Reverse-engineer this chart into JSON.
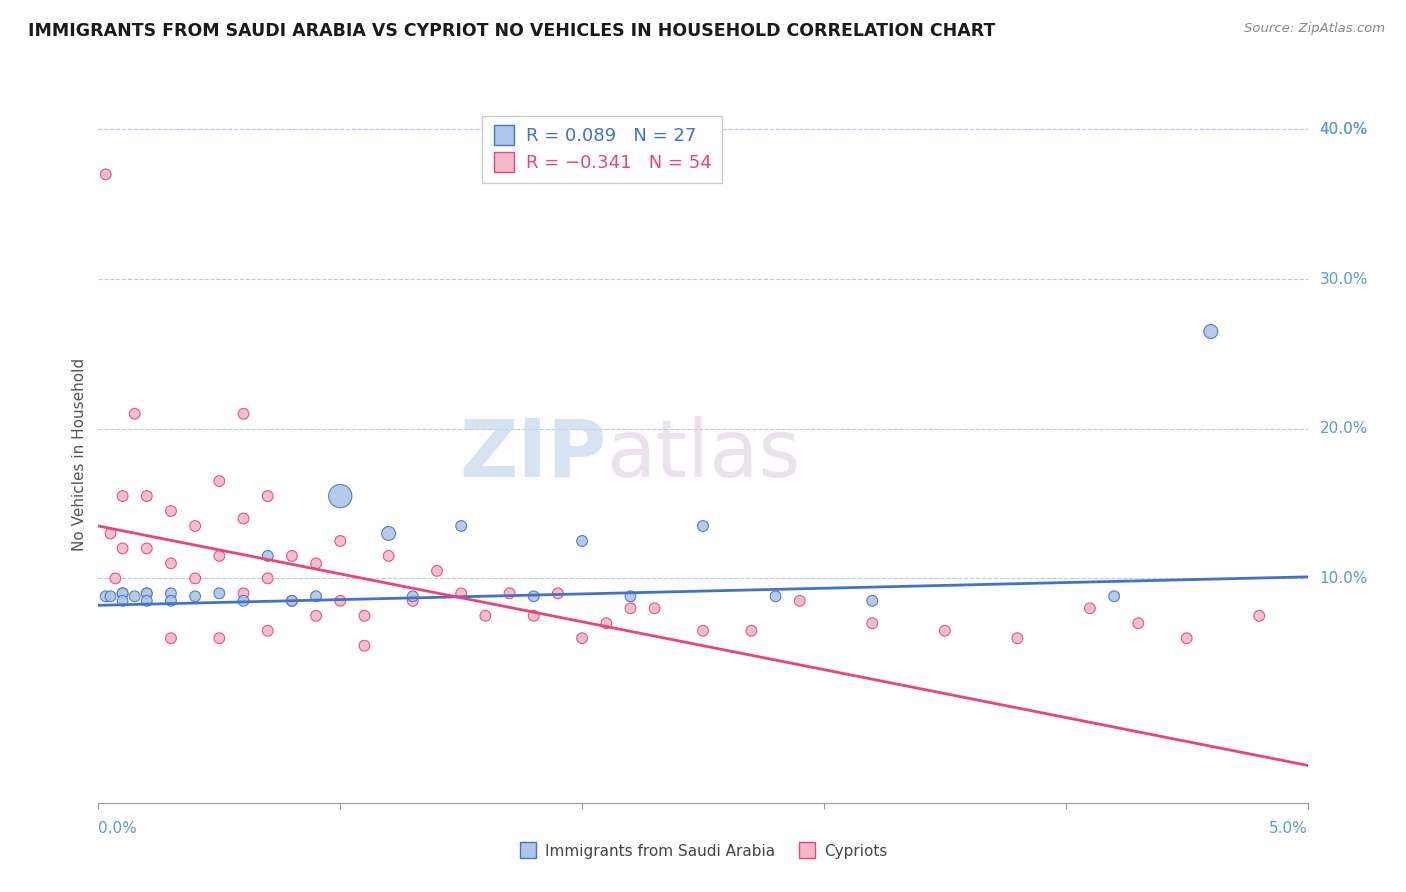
{
  "title": "IMMIGRANTS FROM SAUDI ARABIA VS CYPRIOT NO VEHICLES IN HOUSEHOLD CORRELATION CHART",
  "source_text": "Source: ZipAtlas.com",
  "ylabel": "No Vehicles in Household",
  "ylabel_right_ticks": [
    0.1,
    0.2,
    0.3,
    0.4
  ],
  "ylabel_right_labels": [
    "10.0%",
    "20.0%",
    "30.0%",
    "40.0%"
  ],
  "xmin": 0.0,
  "xmax": 0.05,
  "ymin": -0.05,
  "ymax": 0.415,
  "blue_line_color": "#4472c4",
  "pink_line_color": "#e8457a",
  "blue_color": "#aec6e8",
  "pink_color": "#f4b8c8",
  "legend_label_blue": "Immigrants from Saudi Arabia",
  "legend_label_pink": "Cypriots",
  "watermark_zip": "ZIP",
  "watermark_atlas": "atlas",
  "blue_scatter_x": [
    0.0003,
    0.0005,
    0.001,
    0.001,
    0.0015,
    0.002,
    0.002,
    0.003,
    0.003,
    0.004,
    0.005,
    0.006,
    0.007,
    0.008,
    0.009,
    0.01,
    0.012,
    0.013,
    0.015,
    0.018,
    0.02,
    0.022,
    0.025,
    0.028,
    0.032,
    0.042,
    0.046
  ],
  "blue_scatter_y": [
    0.088,
    0.088,
    0.09,
    0.085,
    0.088,
    0.09,
    0.085,
    0.09,
    0.085,
    0.088,
    0.09,
    0.085,
    0.115,
    0.085,
    0.088,
    0.155,
    0.13,
    0.088,
    0.135,
    0.088,
    0.125,
    0.088,
    0.135,
    0.088,
    0.085,
    0.088,
    0.265
  ],
  "blue_scatter_size": [
    60,
    60,
    60,
    60,
    60,
    60,
    60,
    60,
    60,
    60,
    60,
    60,
    60,
    60,
    60,
    280,
    100,
    60,
    60,
    60,
    60,
    60,
    60,
    60,
    60,
    60,
    100
  ],
  "pink_scatter_x": [
    0.0003,
    0.0005,
    0.0007,
    0.001,
    0.001,
    0.001,
    0.0015,
    0.002,
    0.002,
    0.002,
    0.003,
    0.003,
    0.003,
    0.004,
    0.004,
    0.005,
    0.005,
    0.005,
    0.006,
    0.006,
    0.006,
    0.007,
    0.007,
    0.007,
    0.008,
    0.008,
    0.009,
    0.009,
    0.01,
    0.01,
    0.011,
    0.011,
    0.012,
    0.013,
    0.014,
    0.015,
    0.016,
    0.017,
    0.018,
    0.019,
    0.02,
    0.021,
    0.022,
    0.023,
    0.025,
    0.027,
    0.029,
    0.032,
    0.035,
    0.038,
    0.041,
    0.043,
    0.045,
    0.048
  ],
  "pink_scatter_y": [
    0.37,
    0.13,
    0.1,
    0.155,
    0.12,
    0.09,
    0.21,
    0.155,
    0.12,
    0.09,
    0.145,
    0.11,
    0.06,
    0.135,
    0.1,
    0.165,
    0.115,
    0.06,
    0.21,
    0.14,
    0.09,
    0.155,
    0.1,
    0.065,
    0.115,
    0.085,
    0.11,
    0.075,
    0.125,
    0.085,
    0.075,
    0.055,
    0.115,
    0.085,
    0.105,
    0.09,
    0.075,
    0.09,
    0.075,
    0.09,
    0.06,
    0.07,
    0.08,
    0.08,
    0.065,
    0.065,
    0.085,
    0.07,
    0.065,
    0.06,
    0.08,
    0.07,
    0.06,
    0.075
  ],
  "pink_scatter_size": [
    60,
    60,
    60,
    60,
    60,
    60,
    60,
    60,
    60,
    60,
    60,
    60,
    60,
    60,
    60,
    60,
    60,
    60,
    60,
    60,
    60,
    60,
    60,
    60,
    60,
    60,
    60,
    60,
    60,
    60,
    60,
    60,
    60,
    60,
    60,
    60,
    60,
    60,
    60,
    60,
    60,
    60,
    60,
    60,
    60,
    60,
    60,
    60,
    60,
    60,
    60,
    60,
    60,
    60
  ],
  "blue_trend_x": [
    0.0,
    0.05
  ],
  "blue_trend_y": [
    0.082,
    0.101
  ],
  "pink_trend_x": [
    0.0,
    0.05
  ],
  "pink_trend_y": [
    0.135,
    -0.025
  ]
}
